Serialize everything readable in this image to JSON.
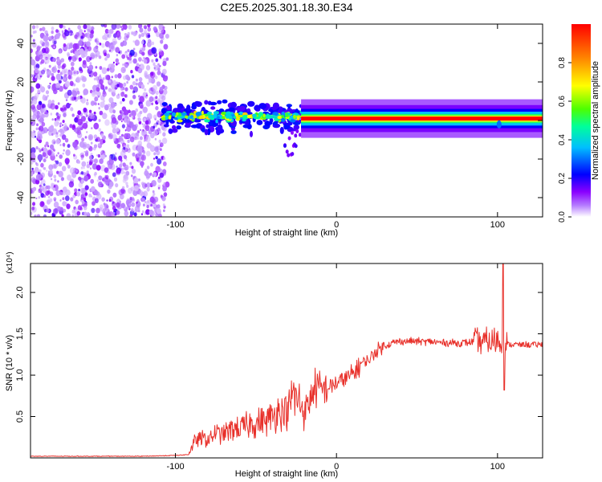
{
  "title": "C2E5.2025.301.18.30.E34",
  "chart_data": [
    {
      "type": "heatmap",
      "name": "spectrogram",
      "xlabel": "Height of straight line (km)",
      "ylabel": "Frequency (Hz)",
      "xlim": [
        -190,
        128
      ],
      "ylim": [
        -50,
        50
      ],
      "xticks": [
        -100,
        0,
        100
      ],
      "yticks": [
        -40,
        -20,
        0,
        20,
        40
      ],
      "colorbar": {
        "label": "Normalized spectral amplitude",
        "range": [
          0,
          1
        ],
        "ticks": [
          "0.0",
          "0.2",
          "0.4",
          "0.6",
          "0.8"
        ],
        "colors": [
          "#ffffff",
          "#8a00ff",
          "#0000ff",
          "#00bfff",
          "#00ff9a",
          "#4dff00",
          "#ffff00",
          "#ff8800",
          "#ff0000"
        ]
      },
      "regions": [
        {
          "x_range": [
            -190,
            -105
          ],
          "description": "broadband noise",
          "amplitude": 0.1,
          "freq_range": [
            -50,
            50
          ]
        },
        {
          "x_range": [
            -108,
            -22
          ],
          "description": "scattered signal",
          "amplitude_peak": 0.5,
          "freq_center": 2,
          "freq_spread": 7
        },
        {
          "x_range": [
            -22,
            128
          ],
          "description": "steady tone",
          "amplitude_peak": 1.0,
          "freq_center": 1
        }
      ]
    },
    {
      "type": "line",
      "name": "snr",
      "xlabel": "Height of straight line (km)",
      "ylabel": "SNR (10 * v/v)",
      "multiplier": "(x10⁴)",
      "xlim": [
        -190,
        128
      ],
      "ylim": [
        0,
        2.35
      ],
      "xticks": [
        -100,
        0,
        100
      ],
      "yticks": [
        "0.5",
        "1.0",
        "1.5",
        "2.0"
      ],
      "color": "#e8302a",
      "series": [
        {
          "name": "SNR",
          "x": [
            -190,
            -150,
            -120,
            -100,
            -92,
            -88,
            -85,
            -80,
            -75,
            -70,
            -65,
            -60,
            -55,
            -50,
            -45,
            -40,
            -35,
            -30,
            -27,
            -25,
            -22,
            -20,
            -18,
            -15,
            -12,
            -10,
            -5,
            0,
            5,
            10,
            15,
            20,
            25,
            30,
            35,
            40,
            50,
            60,
            70,
            80,
            85,
            90,
            95,
            100,
            102,
            104,
            106,
            110,
            128
          ],
          "y": [
            0.02,
            0.02,
            0.02,
            0.03,
            0.04,
            0.2,
            0.24,
            0.22,
            0.3,
            0.28,
            0.36,
            0.34,
            0.4,
            0.42,
            0.44,
            0.48,
            0.58,
            0.55,
            0.78,
            0.7,
            0.66,
            0.56,
            0.62,
            0.8,
            0.86,
            0.8,
            0.86,
            0.9,
            0.96,
            1.0,
            1.14,
            1.18,
            1.3,
            1.36,
            1.39,
            1.41,
            1.41,
            1.4,
            1.39,
            1.39,
            1.4,
            1.41,
            1.4,
            1.42,
            1.4,
            1.38,
            1.37,
            1.37,
            1.37
          ]
        }
      ]
    }
  ]
}
